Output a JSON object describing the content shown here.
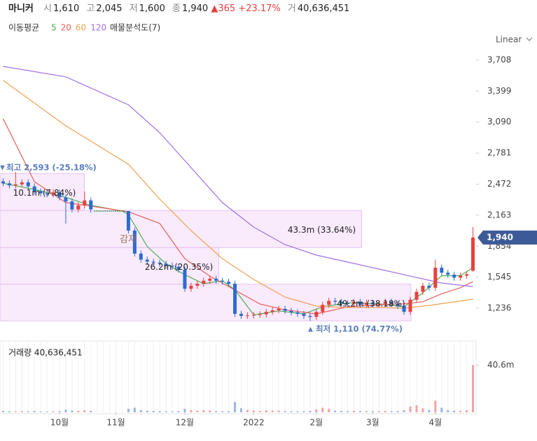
{
  "header": {
    "name": "마니커",
    "fields": [
      {
        "label": "시",
        "value": "1,610"
      },
      {
        "label": "고",
        "value": "2,045"
      },
      {
        "label": "저",
        "value": "1,600"
      },
      {
        "label": "종",
        "value": "1,940"
      }
    ],
    "change": "▲365",
    "change_pct": "+23.17%",
    "volume_label": "거",
    "volume_value": "40,636,451"
  },
  "chart_data": {
    "type": "candlestick",
    "scale": "Linear",
    "xlim": [
      -0.5,
      75.5
    ],
    "xticks": [
      {
        "value": 9,
        "label": "10월"
      },
      {
        "value": 18,
        "label": "11월"
      },
      {
        "value": 29,
        "label": "12월"
      },
      {
        "value": 40,
        "label": "2022"
      },
      {
        "value": 50,
        "label": "2월"
      },
      {
        "value": 59,
        "label": "3월"
      },
      {
        "value": 69,
        "label": "4월"
      }
    ],
    "ylim": [
      1090,
      3819
    ],
    "yticks": [
      {
        "value": 1236,
        "label": "1,236"
      },
      {
        "value": 1545,
        "label": "1,545"
      },
      {
        "value": 1854,
        "label": "1,854"
      },
      {
        "value": 2163,
        "label": "2,163"
      },
      {
        "value": 2472,
        "label": "2,472"
      },
      {
        "value": 2781,
        "label": "2,781"
      },
      {
        "value": 3090,
        "label": "3,090"
      },
      {
        "value": 3399,
        "label": "3,399"
      },
      {
        "value": 3708,
        "label": "3,708"
      }
    ],
    "up_color": "#e8403f",
    "down_color": "#2c6bd1",
    "open": [
      2500,
      2480,
      2460,
      2470,
      2490,
      2450,
      2400,
      2380,
      2370,
      2390,
      2340,
      2300,
      2220,
      2260,
      2310,
      2204,
      2204,
      2204,
      2204,
      2204,
      2204,
      2010,
      1780,
      1720,
      1700,
      1690,
      1680,
      1660,
      1650,
      1620,
      1430,
      1460,
      1480,
      1510,
      1530,
      1510,
      1500,
      1480,
      1180,
      1160,
      1165,
      1170,
      1175,
      1200,
      1215,
      1230,
      1210,
      1195,
      1180,
      1160,
      1150,
      1200,
      1270,
      1310,
      1300,
      1285,
      1280,
      1300,
      1270,
      1290,
      1275,
      1280,
      1300,
      1280,
      1260,
      1200,
      1320,
      1400,
      1460,
      1440,
      1640,
      1590,
      1570,
      1540,
      1560,
      1610
    ],
    "high": [
      2530,
      2510,
      2593,
      2520,
      2520,
      2480,
      2430,
      2410,
      2420,
      2420,
      2370,
      2330,
      2290,
      2400,
      2340,
      2204,
      2204,
      2204,
      2204,
      2204,
      2204,
      2040,
      1810,
      1750,
      1730,
      1720,
      1710,
      1690,
      1680,
      1650,
      1490,
      1510,
      1540,
      1560,
      1560,
      1540,
      1530,
      1510,
      1210,
      1195,
      1200,
      1205,
      1230,
      1245,
      1260,
      1260,
      1240,
      1225,
      1210,
      1190,
      1230,
      1300,
      1340,
      1340,
      1330,
      1315,
      1330,
      1330,
      1320,
      1320,
      1310,
      1330,
      1330,
      1310,
      1290,
      1350,
      1430,
      1490,
      1490,
      1720,
      1670,
      1620,
      1600,
      1590,
      1605,
      2045
    ],
    "low": [
      2450,
      2430,
      2430,
      2440,
      2420,
      2370,
      2350,
      2340,
      2340,
      2310,
      2080,
      2190,
      2190,
      2230,
      2190,
      2204,
      2204,
      2204,
      2204,
      2204,
      1980,
      1750,
      1690,
      1670,
      1660,
      1650,
      1630,
      1620,
      1590,
      1400,
      1400,
      1430,
      1450,
      1480,
      1480,
      1470,
      1450,
      1150,
      1130,
      1130,
      1135,
      1140,
      1145,
      1170,
      1185,
      1180,
      1165,
      1150,
      1130,
      1110,
      1120,
      1170,
      1240,
      1270,
      1255,
      1250,
      1250,
      1240,
      1240,
      1245,
      1245,
      1250,
      1250,
      1230,
      1170,
      1170,
      1290,
      1370,
      1410,
      1410,
      1560,
      1540,
      1510,
      1510,
      1530,
      1600
    ],
    "close": [
      2480,
      2460,
      2470,
      2490,
      2450,
      2400,
      2380,
      2370,
      2390,
      2340,
      2300,
      2220,
      2260,
      2310,
      2220,
      2204,
      2204,
      2204,
      2204,
      2204,
      2010,
      1780,
      1720,
      1700,
      1690,
      1680,
      1660,
      1650,
      1620,
      1430,
      1460,
      1480,
      1510,
      1530,
      1510,
      1500,
      1480,
      1180,
      1160,
      1165,
      1170,
      1175,
      1200,
      1215,
      1230,
      1210,
      1195,
      1180,
      1160,
      1150,
      1200,
      1270,
      1310,
      1300,
      1285,
      1280,
      1300,
      1270,
      1290,
      1275,
      1280,
      1300,
      1280,
      1260,
      1200,
      1320,
      1400,
      1460,
      1440,
      1640,
      1590,
      1570,
      1540,
      1560,
      1575,
      1940
    ],
    "ma_label": "이동평균",
    "ma_series": [
      {
        "name": "5",
        "color": "#4caf50",
        "x": [
          0,
          5,
          10,
          14,
          19,
          20,
          23,
          26,
          29,
          32,
          35,
          37,
          40,
          44,
          48,
          51,
          55,
          60,
          64,
          67,
          70,
          73,
          75
        ],
        "values": [
          2480,
          2420,
          2340,
          2260,
          2204,
          2170,
          1850,
          1680,
          1570,
          1480,
          1510,
          1420,
          1170,
          1210,
          1180,
          1250,
          1290,
          1280,
          1250,
          1390,
          1560,
          1560,
          1640
        ]
      },
      {
        "name": "20",
        "color": "#e8605a",
        "x": [
          0,
          5,
          10,
          14,
          20,
          25,
          29,
          33,
          37,
          41,
          45,
          50,
          55,
          60,
          64,
          67,
          70,
          73,
          75
        ],
        "values": [
          3124,
          2496,
          2288,
          2253,
          2197,
          2080,
          1730,
          1556,
          1417,
          1278,
          1220,
          1180,
          1250,
          1270,
          1280,
          1300,
          1380,
          1440,
          1500
        ]
      },
      {
        "name": "60",
        "color": "#f0a050",
        "x": [
          0,
          10,
          20,
          25,
          30,
          35,
          40,
          45,
          50,
          55,
          60,
          64,
          68,
          72,
          75
        ],
        "values": [
          3506,
          3053,
          2670,
          2322,
          2009,
          1730,
          1522,
          1347,
          1257,
          1243,
          1243,
          1236,
          1264,
          1299,
          1327
        ]
      },
      {
        "name": "120",
        "color": "#a070e8",
        "x": [
          0,
          10,
          20,
          25,
          30,
          35,
          40,
          45,
          50,
          55,
          60,
          65,
          70,
          75
        ],
        "values": [
          3645,
          3541,
          3262,
          2984,
          2636,
          2288,
          2044,
          1870,
          1765,
          1696,
          1626,
          1556,
          1487,
          1452
        ]
      }
    ],
    "volume_profile": {
      "label": "매물분석도(7)",
      "boxes": [
        {
          "low": 2210,
          "high": 2578,
          "value": 10100000,
          "label": "10.1m (7.84%)"
        },
        {
          "low": 1840,
          "high": 2210,
          "value": 43300000,
          "label": "43.3m (33.64%)"
        },
        {
          "low": 1475,
          "high": 1840,
          "value": 26200000,
          "label": "26.2m (20.35%)"
        },
        {
          "low": 1110,
          "high": 1475,
          "value": 49200000,
          "label": "49.2m (38.18%)"
        }
      ]
    },
    "annotations": {
      "high": "최고 2,593 (-25.18%)",
      "low": "최저 1,110 (74.77%)",
      "event": "감자"
    },
    "last_price": {
      "value": 1940,
      "label": "1,940"
    },
    "volume": {
      "title": "거래량 40,636,451",
      "ylim": [
        0,
        60000000
      ],
      "yticks": [
        {
          "value": 40636451,
          "label": "40.6m"
        }
      ],
      "values": [
        1200000,
        900000,
        800000,
        1000000,
        900000,
        1100000,
        800000,
        700000,
        900000,
        1000000,
        2500000,
        1500000,
        1200000,
        1800000,
        1300000,
        0,
        0,
        0,
        0,
        0,
        3000000,
        4000000,
        2000000,
        1500000,
        1200000,
        1000000,
        900000,
        800000,
        1100000,
        3000000,
        2000000,
        1500000,
        1800000,
        1600000,
        1100000,
        900000,
        1000000,
        9000000,
        3500000,
        2000000,
        1500000,
        1200000,
        1800000,
        1600000,
        1500000,
        1100000,
        900000,
        800000,
        1000000,
        1300000,
        2500000,
        4000000,
        3000000,
        1500000,
        1200000,
        1000000,
        1400000,
        1100000,
        1000000,
        900000,
        1000000,
        1200000,
        900000,
        1000000,
        1800000,
        5000000,
        6000000,
        3500000,
        2000000,
        10000000,
        4000000,
        2000000,
        1500000,
        1300000,
        1800000,
        40636451
      ]
    }
  }
}
